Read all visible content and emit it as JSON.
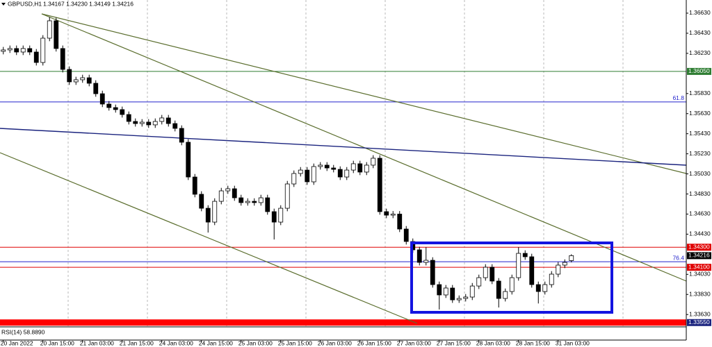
{
  "chart_data": {
    "type": "candlestick",
    "title": "GBPUSD,H1",
    "quote": "1.34167 1.34230 1.34149 1.34216",
    "indicator": "RSI(14) 58.8890",
    "categories": [
      "20 Jan 2022",
      null,
      null,
      null,
      null,
      null,
      "20 Jan 15:00",
      null,
      null,
      null,
      null,
      null,
      "21 Jan 03:00",
      null,
      null,
      null,
      null,
      null,
      "21 Jan 15:00",
      null,
      null,
      null,
      null,
      null,
      "24 Jan 03:00",
      null,
      null,
      null,
      null,
      null,
      "24 Jan 15:00",
      null,
      null,
      null,
      null,
      null,
      "25 Jan 03:00",
      null,
      null,
      null,
      null,
      null,
      "25 Jan 15:00",
      null,
      null,
      null,
      null,
      null,
      "26 Jan 03:00",
      null,
      null,
      null,
      null,
      null,
      "26 Jan 15:00",
      null,
      null,
      null,
      null,
      null,
      "27 Jan 03:00",
      null,
      null,
      null,
      null,
      null,
      "27 Jan 15:00",
      null,
      null,
      null,
      null,
      null,
      "28 Jan 03:00",
      null,
      null,
      null,
      null,
      null,
      "28 Jan 15:00",
      null,
      null,
      null,
      null,
      null,
      "31 Jan 03:00",
      null,
      null
    ],
    "open": [
      1.3625,
      1.36264,
      1.36278,
      1.36243,
      1.36278,
      1.36243,
      1.36139,
      1.36381,
      1.36554,
      1.36278,
      1.3607,
      1.35946,
      1.35967,
      1.35987,
      1.35932,
      1.35828,
      1.35725,
      1.3569,
      1.3567,
      1.35621,
      1.35552,
      1.35531,
      1.35545,
      1.35518,
      1.35552,
      1.35587,
      1.35531,
      1.35483,
      1.35345,
      1.34999,
      1.34827,
      1.34688,
      1.3455,
      1.34757,
      1.34861,
      1.34882,
      1.34792,
      1.34744,
      1.34757,
      1.34744,
      1.34792,
      1.34654,
      1.3455,
      1.34688,
      1.3493,
      1.35034,
      1.35068,
      1.34951,
      1.35103,
      1.35117,
      1.35089,
      1.35075,
      1.34999,
      1.35068,
      1.35131,
      1.35048,
      1.35117,
      1.35186,
      1.34654,
      1.34619,
      1.3463,
      1.34481,
      1.34357,
      1.34274,
      1.34149,
      1.3417,
      1.33928,
      1.33825,
      1.33894,
      1.33776,
      1.3379,
      1.33804,
      1.33914,
      1.33997,
      1.34101,
      1.33963,
      1.3379,
      1.33859,
      1.33997,
      1.34239,
      1.34205,
      1.33928,
      1.33859,
      1.33928,
      1.34032,
      1.34122,
      1.34167
    ],
    "high": [
      1.36294,
      1.36308,
      1.36308,
      1.36308,
      1.36308,
      1.36273,
      1.36411,
      1.3659,
      1.36584,
      1.36308,
      1.361,
      1.35997,
      1.36017,
      1.36017,
      1.35962,
      1.35858,
      1.35755,
      1.3572,
      1.357,
      1.35651,
      1.35582,
      1.35575,
      1.35575,
      1.35582,
      1.35617,
      1.35617,
      1.35561,
      1.35513,
      1.35375,
      1.35029,
      1.34857,
      1.34718,
      1.34787,
      1.34891,
      1.34912,
      1.34912,
      1.34822,
      1.34787,
      1.34787,
      1.34822,
      1.34822,
      1.34684,
      1.34718,
      1.3496,
      1.35064,
      1.35098,
      1.35098,
      1.35133,
      1.35147,
      1.35147,
      1.35119,
      1.35105,
      1.35098,
      1.35161,
      1.35161,
      1.35147,
      1.35216,
      1.35216,
      1.34684,
      1.3466,
      1.3466,
      1.34511,
      1.34387,
      1.34304,
      1.343,
      1.342,
      1.33958,
      1.33924,
      1.33924,
      1.3382,
      1.33834,
      1.33944,
      1.34027,
      1.34131,
      1.34131,
      1.33993,
      1.33889,
      1.34027,
      1.343,
      1.34269,
      1.34235,
      1.33958,
      1.33958,
      1.34062,
      1.34152,
      1.34179,
      1.3423
    ],
    "low": [
      1.3622,
      1.36234,
      1.36213,
      1.36213,
      1.36213,
      1.36109,
      1.36109,
      1.36351,
      1.36248,
      1.3604,
      1.35916,
      1.35916,
      1.35937,
      1.35902,
      1.35798,
      1.35695,
      1.3566,
      1.3564,
      1.35591,
      1.35522,
      1.35501,
      1.35501,
      1.35488,
      1.35488,
      1.35522,
      1.35501,
      1.35453,
      1.35315,
      1.34969,
      1.34797,
      1.34658,
      1.34446,
      1.3452,
      1.34727,
      1.34831,
      1.34762,
      1.34714,
      1.34714,
      1.34714,
      1.34714,
      1.34624,
      1.34377,
      1.3452,
      1.34658,
      1.349,
      1.35004,
      1.34921,
      1.34921,
      1.35073,
      1.35059,
      1.35045,
      1.34969,
      1.34969,
      1.35038,
      1.35018,
      1.35018,
      1.35087,
      1.34624,
      1.34589,
      1.34589,
      1.34451,
      1.34327,
      1.34244,
      1.34119,
      1.34119,
      1.33898,
      1.3368,
      1.33795,
      1.33746,
      1.33746,
      1.3376,
      1.33774,
      1.33884,
      1.33967,
      1.33933,
      1.337,
      1.3376,
      1.33829,
      1.33967,
      1.34175,
      1.33898,
      1.3374,
      1.33829,
      1.33898,
      1.34002,
      1.34092,
      1.34149
    ],
    "close": [
      1.36264,
      1.36278,
      1.36243,
      1.36278,
      1.36243,
      1.36139,
      1.36381,
      1.36554,
      1.36278,
      1.3607,
      1.35946,
      1.35967,
      1.35987,
      1.35932,
      1.35828,
      1.35725,
      1.3569,
      1.3567,
      1.35621,
      1.35552,
      1.35531,
      1.35545,
      1.35518,
      1.35552,
      1.35587,
      1.35531,
      1.35483,
      1.35345,
      1.34999,
      1.34827,
      1.34688,
      1.3455,
      1.34757,
      1.34861,
      1.34882,
      1.34792,
      1.34744,
      1.34757,
      1.34744,
      1.34792,
      1.34654,
      1.3455,
      1.34688,
      1.3493,
      1.35034,
      1.35068,
      1.34951,
      1.35103,
      1.35117,
      1.35089,
      1.35075,
      1.34999,
      1.35068,
      1.35131,
      1.35048,
      1.35117,
      1.35186,
      1.34654,
      1.34619,
      1.3463,
      1.34481,
      1.34357,
      1.34274,
      1.34149,
      1.3417,
      1.33928,
      1.33825,
      1.33894,
      1.33776,
      1.3379,
      1.33804,
      1.33914,
      1.33997,
      1.34101,
      1.33963,
      1.3379,
      1.33859,
      1.33997,
      1.34239,
      1.34205,
      1.33928,
      1.33859,
      1.33928,
      1.34032,
      1.34122,
      1.34149,
      1.34216
    ],
    "up_color": "#ffffff",
    "down_color": "#000000",
    "ylim": [
      1.33514,
      1.36761
    ],
    "yticks": [
      {
        "value": 1.3663,
        "label": "1.36630"
      },
      {
        "value": 1.3643,
        "label": "1.36430"
      },
      {
        "value": 1.3623,
        "label": "1.36230"
      },
      {
        "value": 1.3583,
        "label": "1.35830"
      },
      {
        "value": 1.3563,
        "label": "1.35630"
      },
      {
        "value": 1.3543,
        "label": "1.35430"
      },
      {
        "value": 1.3523,
        "label": "1.35230"
      },
      {
        "value": 1.3503,
        "label": "1.35030"
      },
      {
        "value": 1.3483,
        "label": "1.34830"
      },
      {
        "value": 1.3463,
        "label": "1.34630"
      },
      {
        "value": 1.3443,
        "label": "1.34430"
      },
      {
        "value": 1.3403,
        "label": "1.34030"
      },
      {
        "value": 1.3383,
        "label": "1.33830"
      },
      {
        "value": 1.3363,
        "label": "1.33630"
      }
    ],
    "levels": [
      {
        "value": 1.3605,
        "label": "1.36050",
        "color": "#2e7d32",
        "style": "box"
      },
      {
        "value": 1.35746,
        "label": "61.8",
        "color": "#2222cc",
        "style": "text"
      },
      {
        "value": 1.343,
        "label": "1.34300",
        "color": "#e00000",
        "style": "box"
      },
      {
        "value": 1.34216,
        "label": "1.34216",
        "color": "#000000",
        "style": "price"
      },
      {
        "value": 1.34156,
        "label": "76.4",
        "color": "#2222cc",
        "style": "text"
      },
      {
        "value": 1.341,
        "label": "1.34100",
        "color": "#e00000",
        "style": "box"
      },
      {
        "value": 1.3355,
        "label": "1.33550",
        "color": "#ff0000",
        "box_color": "#1a237e",
        "style": "band"
      }
    ]
  }
}
